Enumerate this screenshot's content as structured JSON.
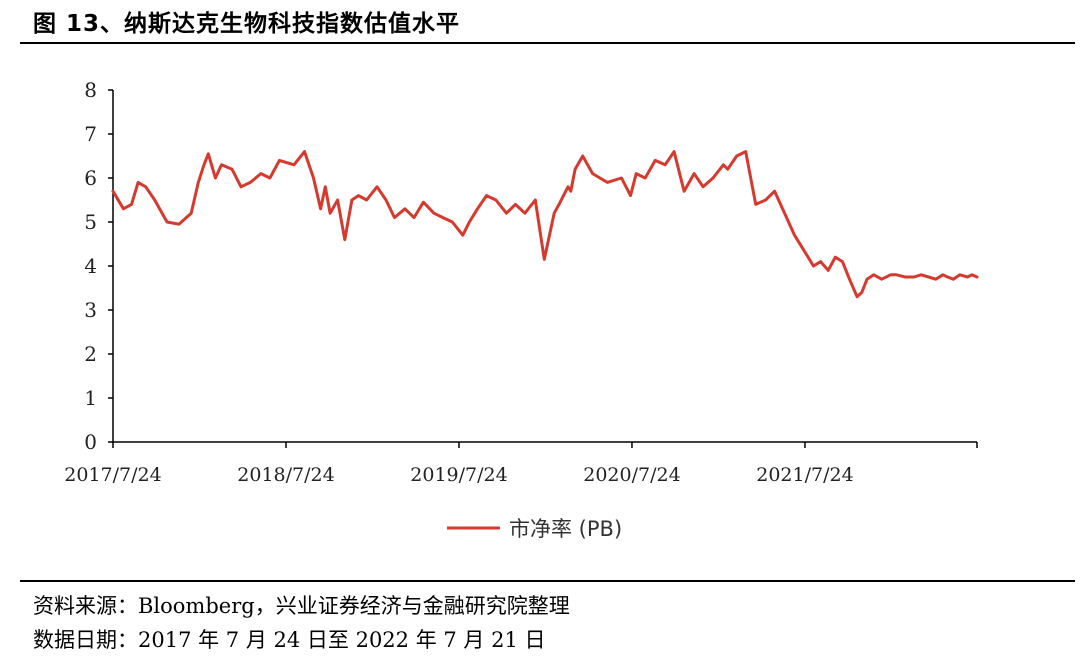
{
  "title": "图 13、纳斯达克生物科技指数估值水平",
  "source_note": "资料来源：Bloomberg，兴业证券经济与金融研究院整理",
  "date_note": "数据日期：2017 年 7 月 24 日至 2022 年 7 月 21 日",
  "colors": {
    "line": "#d63a2f",
    "axis": "#000000"
  },
  "chart_data": {
    "type": "line",
    "title": "",
    "xlabel": "",
    "ylabel": "",
    "ylim": [
      0,
      8
    ],
    "yticks": [
      "0",
      "1",
      "2",
      "3",
      "4",
      "5",
      "6",
      "7",
      "8"
    ],
    "xticks": [
      "2017/7/24",
      "2018/7/24",
      "2019/7/24",
      "2020/7/24",
      "2021/7/24"
    ],
    "legend": {
      "position": "bottom",
      "entries": [
        "市净率 (PB)"
      ]
    },
    "grid": false,
    "series": [
      {
        "name": "市净率 (PB)",
        "x": [
          "2017-07-24",
          "2017-08-15",
          "2017-09-01",
          "2017-09-15",
          "2017-10-01",
          "2017-10-20",
          "2017-11-15",
          "2017-12-10",
          "2018-01-05",
          "2018-01-20",
          "2018-02-01",
          "2018-02-10",
          "2018-02-25",
          "2018-03-10",
          "2018-04-01",
          "2018-04-20",
          "2018-05-10",
          "2018-06-01",
          "2018-06-20",
          "2018-07-10",
          "2018-07-25",
          "2018-08-10",
          "2018-09-01",
          "2018-09-20",
          "2018-10-05",
          "2018-10-15",
          "2018-10-25",
          "2018-11-10",
          "2018-11-25",
          "2018-12-10",
          "2018-12-24",
          "2019-01-10",
          "2019-02-01",
          "2019-02-20",
          "2019-03-10",
          "2019-04-01",
          "2019-04-20",
          "2019-05-10",
          "2019-06-01",
          "2019-06-20",
          "2019-07-10",
          "2019-08-01",
          "2019-08-15",
          "2019-09-01",
          "2019-09-20",
          "2019-10-10",
          "2019-11-01",
          "2019-11-20",
          "2019-12-10",
          "2020-01-01",
          "2020-01-20",
          "2020-02-10",
          "2020-02-20",
          "2020-03-10",
          "2020-03-16",
          "2020-03-25",
          "2020-04-10",
          "2020-05-01",
          "2020-06-01",
          "2020-07-01",
          "2020-07-20",
          "2020-08-01",
          "2020-08-20",
          "2020-09-10",
          "2020-10-01",
          "2020-10-20",
          "2020-11-10",
          "2020-12-01",
          "2020-12-20",
          "2021-01-10",
          "2021-02-01",
          "2021-02-10",
          "2021-03-01",
          "2021-03-20",
          "2021-04-10",
          "2021-05-01",
          "2021-05-20",
          "2021-06-10",
          "2021-07-01",
          "2021-07-24",
          "2021-08-10",
          "2021-08-25",
          "2021-09-10",
          "2021-09-25",
          "2021-10-10",
          "2021-10-25",
          "2021-11-10",
          "2021-11-20",
          "2021-12-01",
          "2021-12-15",
          "2022-01-01",
          "2022-01-20",
          "2022-02-01",
          "2022-02-20",
          "2022-03-10",
          "2022-03-25",
          "2022-04-10",
          "2022-04-25",
          "2022-05-10",
          "2022-05-20",
          "2022-06-01",
          "2022-06-15",
          "2022-07-01",
          "2022-07-10",
          "2022-07-21"
        ],
        "values": [
          5.7,
          5.3,
          5.4,
          5.9,
          5.8,
          5.5,
          5.0,
          4.95,
          5.2,
          5.9,
          6.3,
          6.55,
          6.0,
          6.3,
          6.2,
          5.8,
          5.9,
          6.1,
          6.0,
          6.4,
          6.35,
          6.3,
          6.6,
          6.0,
          5.3,
          5.8,
          5.2,
          5.5,
          4.6,
          5.5,
          5.6,
          5.5,
          5.8,
          5.5,
          5.1,
          5.3,
          5.1,
          5.45,
          5.2,
          5.1,
          5.0,
          4.7,
          5.0,
          5.3,
          5.6,
          5.5,
          5.2,
          5.4,
          5.2,
          5.5,
          4.15,
          5.2,
          5.4,
          5.8,
          5.7,
          6.2,
          6.5,
          6.1,
          5.9,
          6.0,
          5.6,
          6.1,
          6.0,
          6.4,
          6.3,
          6.6,
          5.7,
          6.1,
          5.8,
          6.0,
          6.3,
          6.2,
          6.5,
          6.6,
          5.4,
          5.5,
          5.7,
          5.2,
          4.7,
          4.3,
          4.0,
          4.1,
          3.9,
          4.2,
          4.1,
          3.7,
          3.3,
          3.4,
          3.7,
          3.8,
          3.7,
          3.8,
          3.8,
          3.75,
          3.75,
          3.8,
          3.75,
          3.7,
          3.8,
          3.75,
          3.7,
          3.8,
          3.75,
          3.8,
          3.75
        ]
      }
    ]
  }
}
